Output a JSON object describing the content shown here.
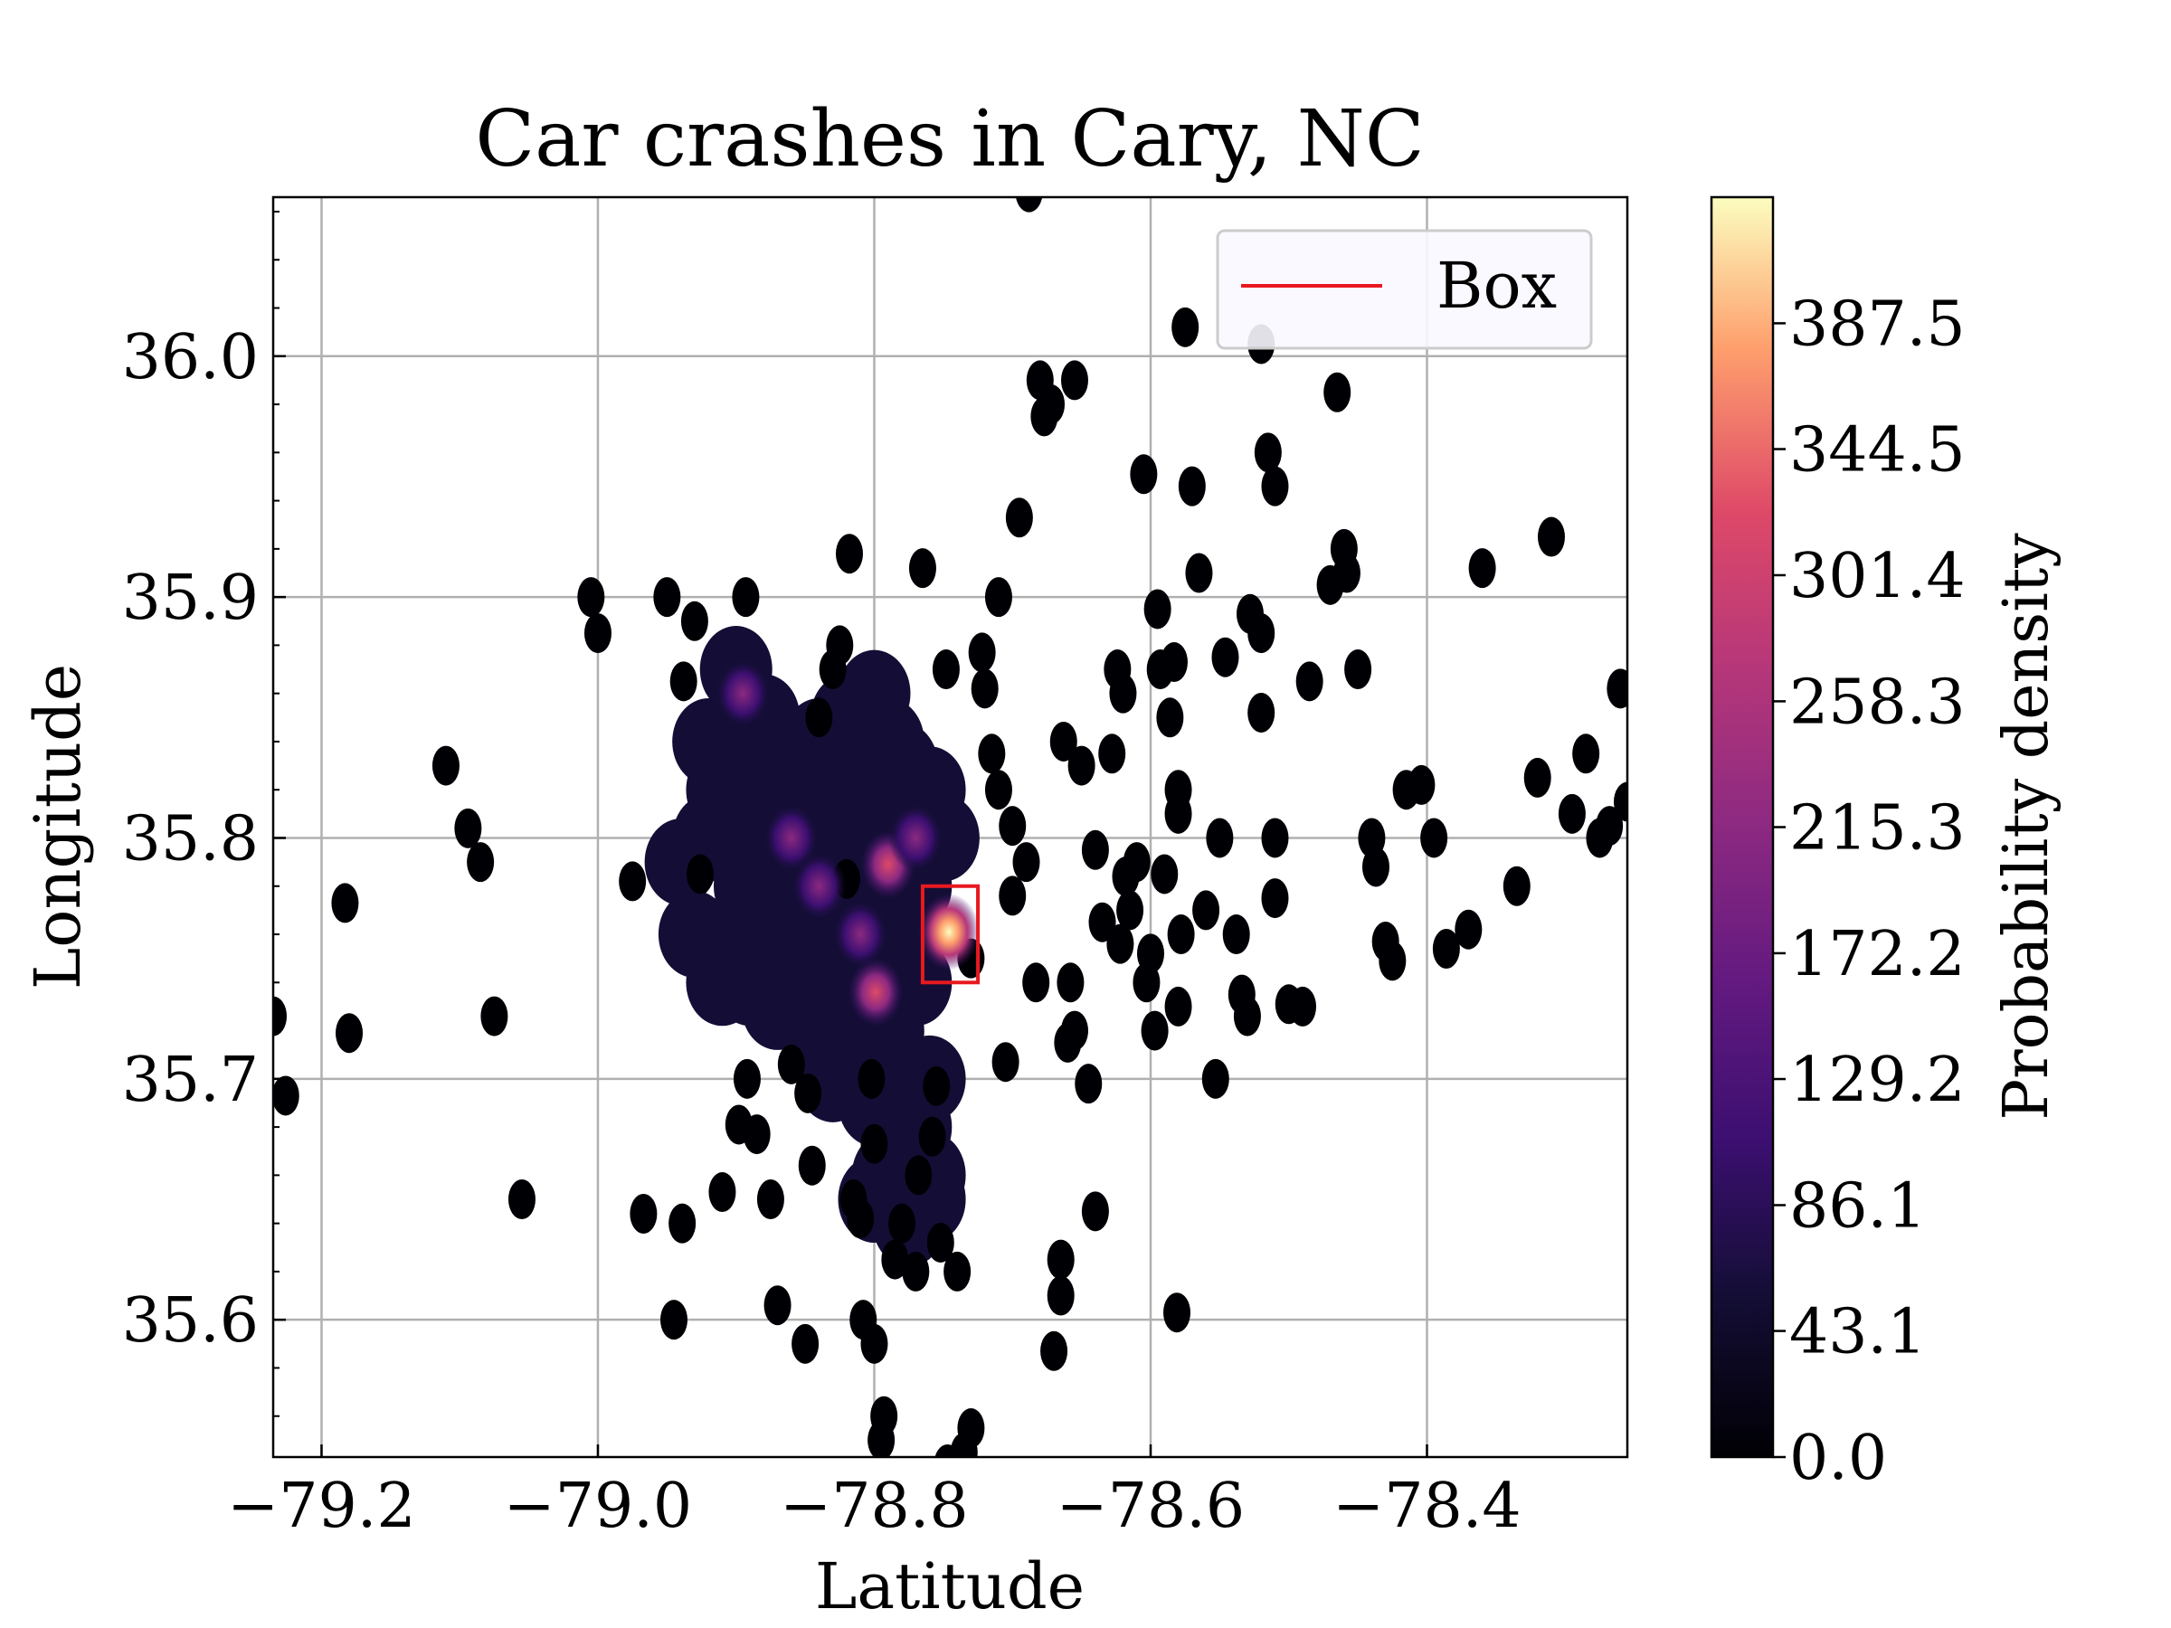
{
  "chart_data": {
    "type": "heatmap",
    "title": "Car crashes in Cary, NC",
    "xlabel": "Latitude",
    "ylabel": "Longitude",
    "xlim": [
      -79.235,
      -78.255
    ],
    "ylim": [
      35.543,
      36.066
    ],
    "xticks": [
      -79.2,
      -79.0,
      -78.8,
      -78.6,
      -78.4
    ],
    "xtick_labels": [
      "−79.2",
      "−79.0",
      "−78.8",
      "−78.6",
      "−78.4"
    ],
    "yticks": [
      35.6,
      35.7,
      35.8,
      35.9,
      36.0
    ],
    "ytick_labels": [
      "35.6",
      "35.7",
      "35.8",
      "35.9",
      "36.0"
    ],
    "grid": true,
    "colormap": "magma",
    "colorbar": {
      "label": "Probability density",
      "range": [
        0.0,
        430.6
      ],
      "ticks": [
        0.0,
        43.1,
        86.1,
        129.2,
        172.2,
        215.3,
        258.3,
        301.4,
        344.5,
        387.5
      ],
      "tick_labels": [
        "0.0",
        "43.1",
        "86.1",
        "129.2",
        "172.2",
        "215.3",
        "258.3",
        "301.4",
        "344.5",
        "387.5"
      ]
    },
    "legend": {
      "position": "top-right",
      "entries": [
        {
          "label": "Box",
          "color": "#e8191f"
        }
      ]
    },
    "box": {
      "x0": -78.765,
      "x1": -78.725,
      "y0": 35.74,
      "y1": 35.78,
      "color": "#e8191f"
    },
    "hotspots": [
      {
        "x": -78.746,
        "y": 35.761,
        "density": 420
      },
      {
        "x": -78.799,
        "y": 35.736,
        "density": 250
      },
      {
        "x": -78.79,
        "y": 35.789,
        "density": 160
      },
      {
        "x": -78.84,
        "y": 35.78,
        "density": 120
      },
      {
        "x": -78.895,
        "y": 35.86,
        "density": 110
      },
      {
        "x": -78.86,
        "y": 35.8,
        "density": 100
      },
      {
        "x": -78.77,
        "y": 35.8,
        "density": 85
      },
      {
        "x": -78.81,
        "y": 35.76,
        "density": 95
      }
    ],
    "core_points": [
      [
        -78.92,
        35.84
      ],
      [
        -78.91,
        35.82
      ],
      [
        -78.9,
        35.8
      ],
      [
        -78.89,
        35.78
      ],
      [
        -78.9,
        35.76
      ],
      [
        -78.88,
        35.83
      ],
      [
        -78.87,
        35.81
      ],
      [
        -78.86,
        35.79
      ],
      [
        -78.85,
        35.77
      ],
      [
        -78.86,
        35.75
      ],
      [
        -78.85,
        35.83
      ],
      [
        -78.84,
        35.81
      ],
      [
        -78.83,
        35.79
      ],
      [
        -78.82,
        35.77
      ],
      [
        -78.83,
        35.75
      ],
      [
        -78.82,
        35.73
      ],
      [
        -78.81,
        35.71
      ],
      [
        -78.8,
        35.69
      ],
      [
        -78.79,
        35.84
      ],
      [
        -78.8,
        35.82
      ],
      [
        -78.78,
        35.8
      ],
      [
        -78.77,
        35.78
      ],
      [
        -78.78,
        35.76
      ],
      [
        -78.77,
        35.74
      ],
      [
        -78.79,
        35.72
      ],
      [
        -78.78,
        35.7
      ],
      [
        -78.77,
        35.68
      ],
      [
        -78.76,
        35.66
      ],
      [
        -78.8,
        35.86
      ],
      [
        -78.81,
        35.84
      ],
      [
        -78.82,
        35.85
      ],
      [
        -78.84,
        35.84
      ],
      [
        -78.88,
        35.85
      ],
      [
        -78.9,
        35.87
      ],
      [
        -78.92,
        35.8
      ],
      [
        -78.89,
        35.74
      ],
      [
        -78.87,
        35.73
      ],
      [
        -78.84,
        35.72
      ],
      [
        -78.83,
        35.7
      ],
      [
        -78.81,
        35.74
      ],
      [
        -78.76,
        35.7
      ],
      [
        -78.75,
        35.8
      ],
      [
        -78.76,
        35.82
      ],
      [
        -78.78,
        35.83
      ],
      [
        -78.8,
        35.78
      ],
      [
        -78.82,
        35.81
      ],
      [
        -78.86,
        35.77
      ],
      [
        -78.88,
        35.79
      ],
      [
        -78.94,
        35.79
      ],
      [
        -78.93,
        35.76
      ],
      [
        -78.91,
        35.74
      ],
      [
        -78.79,
        35.66
      ],
      [
        -78.8,
        35.65
      ],
      [
        -78.76,
        35.65
      ],
      [
        -78.775,
        35.64
      ]
    ],
    "points": [
      [
        -79.235,
        35.726
      ],
      [
        -79.226,
        35.693
      ],
      [
        -79.18,
        35.719
      ],
      [
        -79.183,
        35.773
      ],
      [
        -79.11,
        35.83
      ],
      [
        -79.094,
        35.804
      ],
      [
        -79.085,
        35.79
      ],
      [
        -79.075,
        35.726
      ],
      [
        -79.055,
        35.65
      ],
      [
        -79.005,
        35.9
      ],
      [
        -79.0,
        35.885
      ],
      [
        -78.975,
        35.782
      ],
      [
        -78.967,
        35.644
      ],
      [
        -78.95,
        35.9
      ],
      [
        -78.945,
        35.6
      ],
      [
        -78.939,
        35.64
      ],
      [
        -78.938,
        35.865
      ],
      [
        -78.93,
        35.89
      ],
      [
        -78.926,
        35.785
      ],
      [
        -78.91,
        35.653
      ],
      [
        -78.898,
        35.681
      ],
      [
        -78.892,
        35.7
      ],
      [
        -78.893,
        35.9
      ],
      [
        -78.885,
        35.677
      ],
      [
        -78.875,
        35.65
      ],
      [
        -78.87,
        35.606
      ],
      [
        -78.86,
        35.706
      ],
      [
        -78.85,
        35.59
      ],
      [
        -78.848,
        35.694
      ],
      [
        -78.845,
        35.664
      ],
      [
        -78.84,
        35.85
      ],
      [
        -78.83,
        35.87
      ],
      [
        -78.825,
        35.88
      ],
      [
        -78.818,
        35.918
      ],
      [
        -78.82,
        35.783
      ],
      [
        -78.815,
        35.65
      ],
      [
        -78.81,
        35.642
      ],
      [
        -78.808,
        35.6
      ],
      [
        -78.802,
        35.7
      ],
      [
        -78.8,
        35.673
      ],
      [
        -78.8,
        35.59
      ],
      [
        -78.795,
        35.55
      ],
      [
        -78.793,
        35.56
      ],
      [
        -78.785,
        35.625
      ],
      [
        -78.78,
        35.64
      ],
      [
        -78.77,
        35.62
      ],
      [
        -78.768,
        35.66
      ],
      [
        -78.765,
        35.912
      ],
      [
        -78.758,
        35.676
      ],
      [
        -78.755,
        35.697
      ],
      [
        -78.752,
        35.632
      ],
      [
        -78.748,
        35.87
      ],
      [
        -78.747,
        35.54
      ],
      [
        -78.74,
        35.62
      ],
      [
        -78.735,
        35.545
      ],
      [
        -78.73,
        35.555
      ],
      [
        -78.73,
        35.75
      ],
      [
        -78.722,
        35.877
      ],
      [
        -78.72,
        35.862
      ],
      [
        -78.715,
        35.835
      ],
      [
        -78.71,
        35.82
      ],
      [
        -78.71,
        35.9
      ],
      [
        -78.705,
        35.707
      ],
      [
        -78.7,
        35.805
      ],
      [
        -78.7,
        35.776
      ],
      [
        -78.695,
        35.933
      ],
      [
        -78.69,
        35.79
      ],
      [
        -78.688,
        36.068
      ],
      [
        -78.683,
        35.74
      ],
      [
        -78.68,
        35.99
      ],
      [
        -78.677,
        35.975
      ],
      [
        -78.672,
        35.98
      ],
      [
        -78.67,
        35.587
      ],
      [
        -78.665,
        35.625
      ],
      [
        -78.665,
        35.61
      ],
      [
        -78.663,
        35.84
      ],
      [
        -78.66,
        35.715
      ],
      [
        -78.658,
        35.74
      ],
      [
        -78.655,
        35.72
      ],
      [
        -78.655,
        35.99
      ],
      [
        -78.65,
        35.83
      ],
      [
        -78.645,
        35.698
      ],
      [
        -78.64,
        35.645
      ],
      [
        -78.64,
        35.795
      ],
      [
        -78.635,
        35.765
      ],
      [
        -78.628,
        35.835
      ],
      [
        -78.624,
        35.87
      ],
      [
        -78.62,
        35.86
      ],
      [
        -78.622,
        35.756
      ],
      [
        -78.618,
        35.784
      ],
      [
        -78.615,
        35.77
      ],
      [
        -78.61,
        35.79
      ],
      [
        -78.605,
        35.951
      ],
      [
        -78.603,
        35.74
      ],
      [
        -78.6,
        35.752
      ],
      [
        -78.597,
        35.72
      ],
      [
        -78.595,
        35.895
      ],
      [
        -78.593,
        35.87
      ],
      [
        -78.59,
        35.785
      ],
      [
        -78.586,
        35.85
      ],
      [
        -78.583,
        35.873
      ],
      [
        -78.581,
        35.603
      ],
      [
        -78.58,
        35.82
      ],
      [
        -78.58,
        35.81
      ],
      [
        -78.58,
        35.73
      ],
      [
        -78.578,
        35.76
      ],
      [
        -78.575,
        36.012
      ],
      [
        -78.57,
        35.946
      ],
      [
        -78.565,
        35.91
      ],
      [
        -78.56,
        35.77
      ],
      [
        -78.553,
        35.7
      ],
      [
        -78.55,
        35.8
      ],
      [
        -78.546,
        35.875
      ],
      [
        -78.538,
        35.76
      ],
      [
        -78.534,
        35.735
      ],
      [
        -78.53,
        35.726
      ],
      [
        -78.528,
        35.893
      ],
      [
        -78.52,
        35.885
      ],
      [
        -78.52,
        35.852
      ],
      [
        -78.515,
        35.96
      ],
      [
        -78.51,
        35.946
      ],
      [
        -78.51,
        35.8
      ],
      [
        -78.51,
        35.775
      ],
      [
        -78.5,
        35.731
      ],
      [
        -78.49,
        35.73
      ],
      [
        -78.485,
        35.865
      ],
      [
        -78.47,
        35.905
      ],
      [
        -78.465,
        35.985
      ],
      [
        -78.46,
        35.92
      ],
      [
        -78.458,
        35.91
      ],
      [
        -78.45,
        35.87
      ],
      [
        -78.44,
        35.8
      ],
      [
        -78.437,
        35.788
      ],
      [
        -78.43,
        35.757
      ],
      [
        -78.425,
        35.749
      ],
      [
        -78.415,
        35.82
      ],
      [
        -78.404,
        35.822
      ],
      [
        -78.395,
        35.8
      ],
      [
        -78.386,
        35.754
      ],
      [
        -78.37,
        35.762
      ],
      [
        -78.36,
        35.912
      ],
      [
        -78.335,
        35.78
      ],
      [
        -78.32,
        35.825
      ],
      [
        -78.31,
        35.925
      ],
      [
        -78.295,
        35.81
      ],
      [
        -78.285,
        35.835
      ],
      [
        -78.275,
        35.8
      ],
      [
        -78.268,
        35.805
      ],
      [
        -78.26,
        35.862
      ],
      [
        -78.255,
        35.815
      ],
      [
        -78.52,
        36.005
      ]
    ]
  }
}
